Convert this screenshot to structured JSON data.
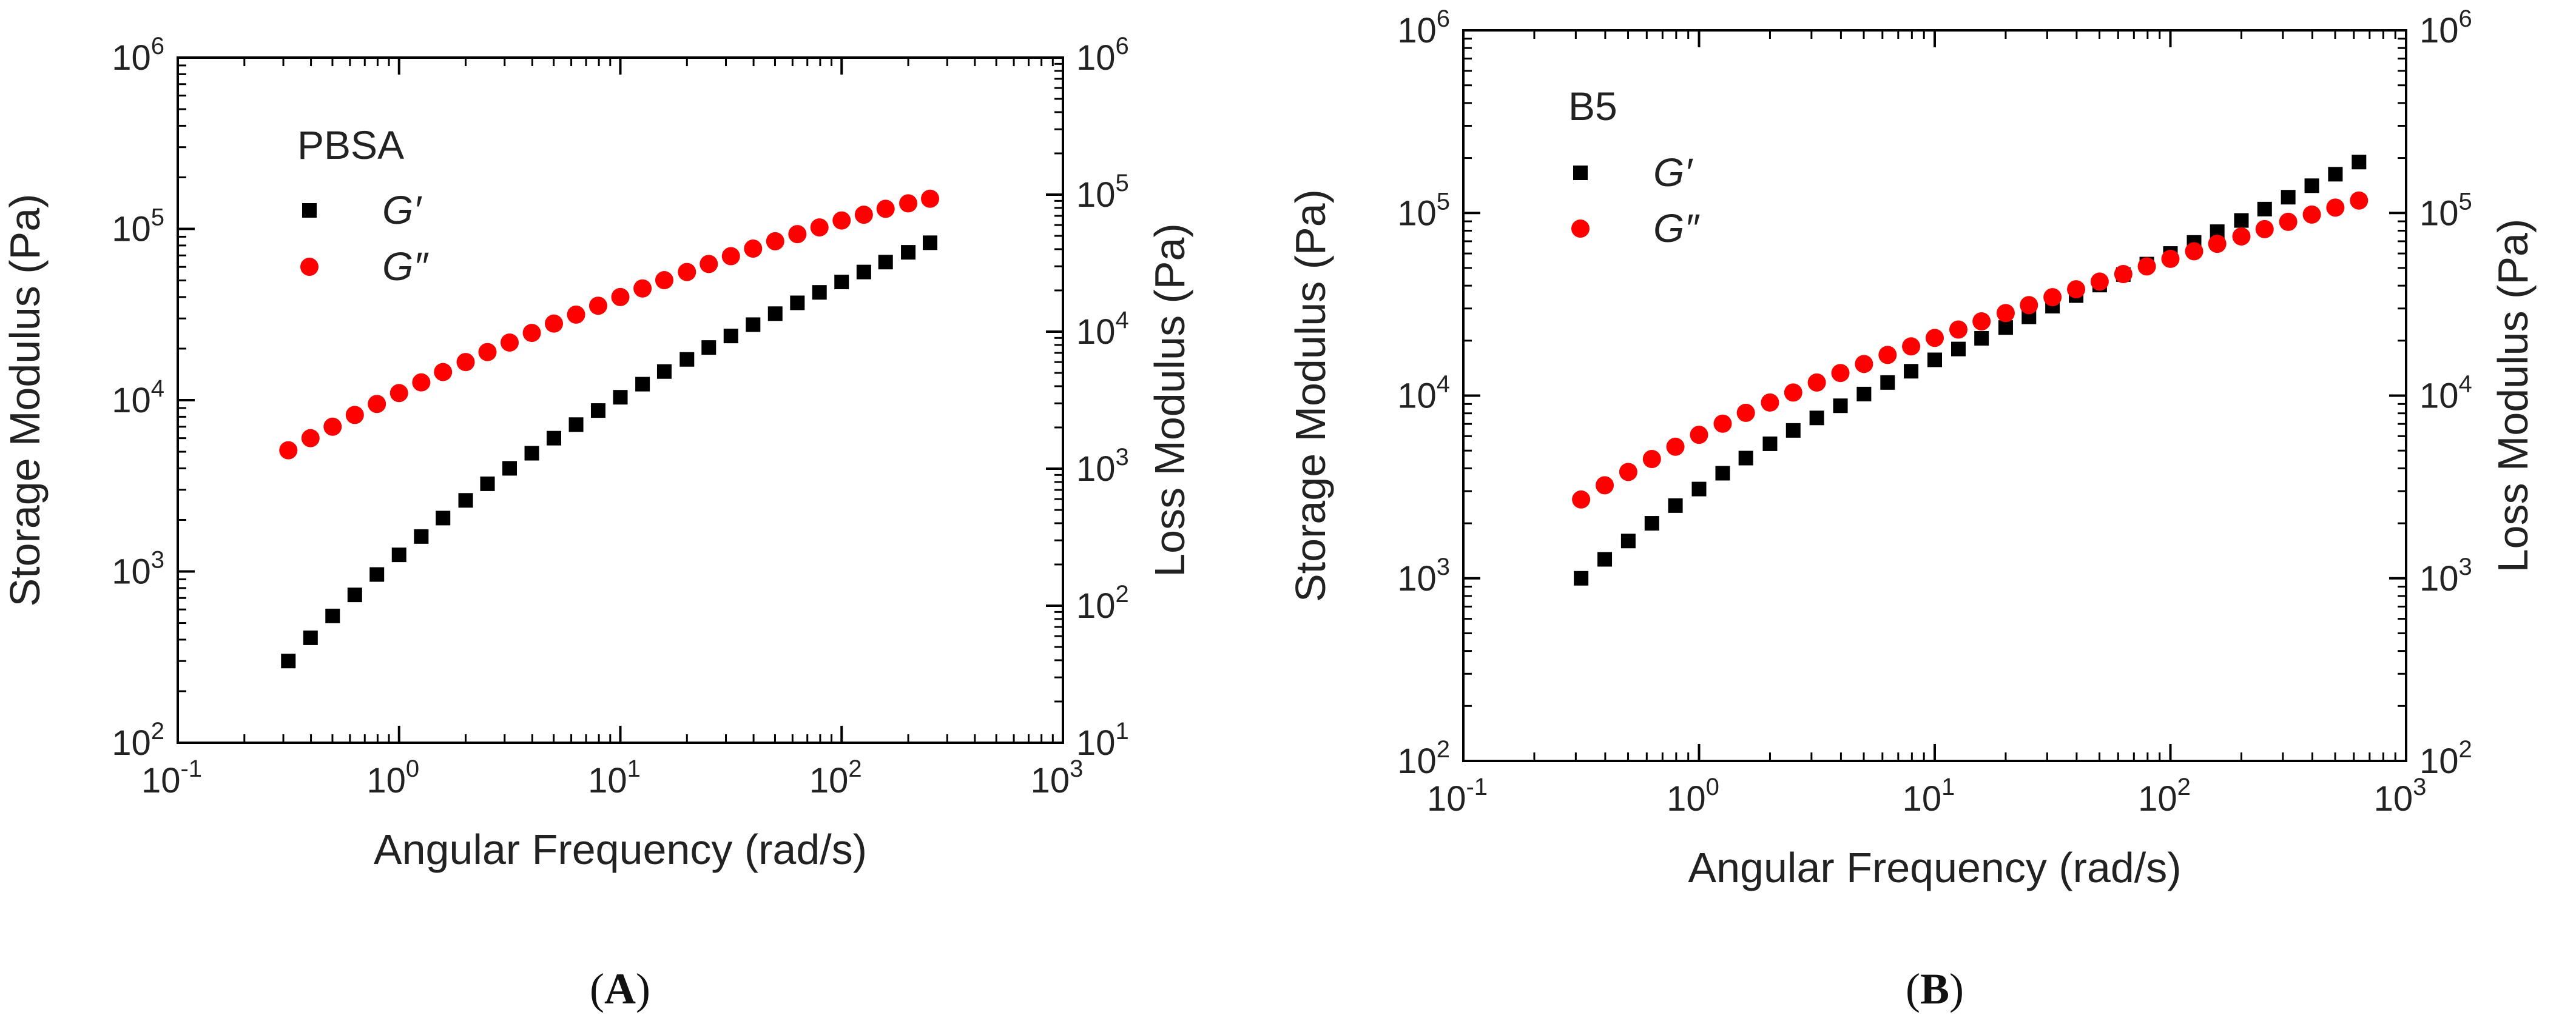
{
  "chart_data": [
    {
      "type": "scatter",
      "panel_label": "(A)",
      "panel_letter": "A",
      "legend_title": "PBSA",
      "xlabel": "Angular Frequency (rad/s)",
      "ylabel": "Storage Modulus (Pa)",
      "y2label": "Loss Modulus (Pa)",
      "x_scale": "log",
      "y_scale": "log",
      "xlim": [
        0.1,
        1000
      ],
      "ylim": [
        100,
        1000000
      ],
      "y2lim": [
        10,
        1000000
      ],
      "grid": false,
      "legend_position": "top-left",
      "x_ticks": [
        {
          "base": "10",
          "exp": "-1",
          "value": 0.1
        },
        {
          "base": "10",
          "exp": "0",
          "value": 1
        },
        {
          "base": "10",
          "exp": "1",
          "value": 10
        },
        {
          "base": "10",
          "exp": "2",
          "value": 100
        },
        {
          "base": "10",
          "exp": "3",
          "value": 1000
        }
      ],
      "y_ticks": [
        {
          "base": "10",
          "exp": "2",
          "value": 100
        },
        {
          "base": "10",
          "exp": "3",
          "value": 1000
        },
        {
          "base": "10",
          "exp": "4",
          "value": 10000
        },
        {
          "base": "10",
          "exp": "5",
          "value": 100000
        },
        {
          "base": "10",
          "exp": "6",
          "value": 1000000
        }
      ],
      "y2_ticks": [
        {
          "base": "10",
          "exp": "1",
          "value": 10
        },
        {
          "base": "10",
          "exp": "2",
          "value": 100
        },
        {
          "base": "10",
          "exp": "3",
          "value": 1000
        },
        {
          "base": "10",
          "exp": "4",
          "value": 10000
        },
        {
          "base": "10",
          "exp": "5",
          "value": 100000
        },
        {
          "base": "10",
          "exp": "6",
          "value": 1000000
        }
      ],
      "x": [
        0.316,
        0.398,
        0.501,
        0.631,
        0.794,
        1.0,
        1.26,
        1.58,
        2.0,
        2.51,
        3.16,
        3.98,
        5.01,
        6.31,
        7.94,
        10.0,
        12.6,
        15.8,
        20.0,
        25.1,
        31.6,
        39.8,
        50.1,
        63.1,
        79.4,
        100,
        126,
        158,
        200,
        251
      ],
      "series": [
        {
          "name": "G′",
          "marker": "square",
          "color": "#000000",
          "axis": "left",
          "values": [
            300,
            410,
            550,
            730,
            960,
            1250,
            1600,
            2050,
            2600,
            3250,
            4000,
            4900,
            6000,
            7200,
            8700,
            10400,
            12400,
            14700,
            17300,
            20300,
            23700,
            27600,
            32000,
            37000,
            42600,
            49000,
            56000,
            64000,
            73000,
            83000
          ]
        },
        {
          "name": "G″",
          "marker": "circle",
          "color": "#ff0000",
          "axis": "left",
          "values": [
            5100,
            6000,
            7000,
            8200,
            9500,
            11000,
            12700,
            14600,
            16700,
            19100,
            21700,
            24700,
            28000,
            31600,
            35600,
            40000,
            44900,
            50200,
            56000,
            62400,
            69300,
            76700,
            84700,
            93200,
            102000,
            112000,
            121000,
            131000,
            141000,
            150000
          ]
        }
      ]
    },
    {
      "type": "scatter",
      "panel_label": "(B)",
      "panel_letter": "B",
      "legend_title": "B5",
      "xlabel": "Angular Frequency (rad/s)",
      "ylabel": "Storage Modulus (Pa)",
      "y2label": "Loss Modulus (Pa)",
      "x_scale": "log",
      "y_scale": "log",
      "xlim": [
        0.1,
        1000
      ],
      "ylim": [
        100,
        1000000
      ],
      "y2lim": [
        100,
        1000000
      ],
      "grid": false,
      "legend_position": "top-left",
      "x_ticks": [
        {
          "base": "10",
          "exp": "-1",
          "value": 0.1
        },
        {
          "base": "10",
          "exp": "0",
          "value": 1
        },
        {
          "base": "10",
          "exp": "1",
          "value": 10
        },
        {
          "base": "10",
          "exp": "2",
          "value": 100
        },
        {
          "base": "10",
          "exp": "3",
          "value": 1000
        }
      ],
      "y_ticks": [
        {
          "base": "10",
          "exp": "2",
          "value": 100
        },
        {
          "base": "10",
          "exp": "3",
          "value": 1000
        },
        {
          "base": "10",
          "exp": "4",
          "value": 10000
        },
        {
          "base": "10",
          "exp": "5",
          "value": 100000
        },
        {
          "base": "10",
          "exp": "6",
          "value": 1000000
        }
      ],
      "y2_ticks": [
        {
          "base": "10",
          "exp": "2",
          "value": 100
        },
        {
          "base": "10",
          "exp": "3",
          "value": 1000
        },
        {
          "base": "10",
          "exp": "4",
          "value": 10000
        },
        {
          "base": "10",
          "exp": "5",
          "value": 100000
        },
        {
          "base": "10",
          "exp": "6",
          "value": 1000000
        }
      ],
      "x": [
        0.316,
        0.398,
        0.501,
        0.631,
        0.794,
        1.0,
        1.26,
        1.58,
        2.0,
        2.51,
        3.16,
        3.98,
        5.01,
        6.31,
        7.94,
        10.0,
        12.6,
        15.8,
        20.0,
        25.1,
        31.6,
        39.8,
        50.1,
        63.1,
        79.4,
        100,
        126,
        158,
        200,
        251,
        316,
        398,
        501,
        631
      ],
      "series": [
        {
          "name": "G′",
          "marker": "square",
          "color": "#000000",
          "axis": "left",
          "values": [
            1000,
            1270,
            1600,
            2000,
            2500,
            3080,
            3760,
            4550,
            5450,
            6450,
            7550,
            8800,
            10200,
            11800,
            13600,
            15700,
            18000,
            20600,
            23600,
            27000,
            30900,
            35300,
            40300,
            46000,
            52500,
            60000,
            69000,
            79000,
            91000,
            105000,
            122000,
            141000,
            163000,
            190000
          ]
        },
        {
          "name": "G″",
          "marker": "circle",
          "color": "#ff0000",
          "axis": "left",
          "values": [
            2700,
            3230,
            3820,
            4500,
            5250,
            6100,
            7020,
            8050,
            9170,
            10400,
            11800,
            13300,
            14900,
            16700,
            18600,
            20700,
            23000,
            25500,
            28300,
            31300,
            34600,
            38200,
            42100,
            46300,
            51000,
            56100,
            61700,
            67800,
            74400,
            81600,
            89400,
            98000,
            107000,
            117000
          ]
        }
      ]
    }
  ]
}
